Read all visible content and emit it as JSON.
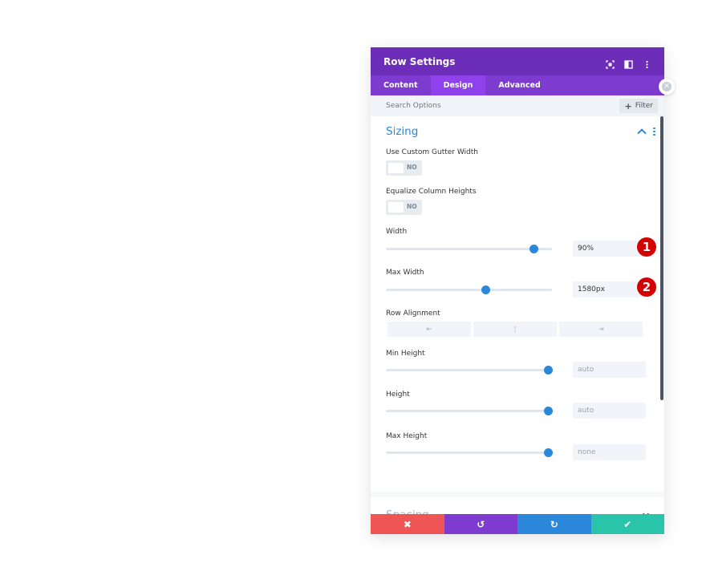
{
  "header": {
    "title": "Row Settings",
    "icons": [
      "screenshot-icon",
      "split-view-icon",
      "more-options-icon"
    ]
  },
  "tabs": [
    {
      "label": "Content",
      "active": false
    },
    {
      "label": "Design",
      "active": true
    },
    {
      "label": "Advanced",
      "active": false
    }
  ],
  "search": {
    "placeholder": "Search Options",
    "filter_label": "Filter",
    "filter_icon": "plus-icon"
  },
  "sizing": {
    "title": "Sizing",
    "custom_gutter": {
      "label": "Use Custom Gutter Width",
      "value": "NO"
    },
    "equalize_heights": {
      "label": "Equalize Column Heights",
      "value": "NO"
    },
    "width": {
      "label": "Width",
      "value": "90%",
      "level": 0.89
    },
    "max_width": {
      "label": "Max Width",
      "value": "1580px",
      "level": 0.6
    },
    "row_alignment": {
      "label": "Row Alignment",
      "options": [
        "left-align-icon",
        "center-align-icon",
        "right-align-icon"
      ]
    },
    "min_height": {
      "label": "Min Height",
      "value": "auto",
      "level": 0.98
    },
    "height": {
      "label": "Height",
      "value": "auto",
      "level": 0.98
    },
    "max_height": {
      "label": "Max Height",
      "value": "none",
      "level": 0.98
    }
  },
  "annotations": {
    "one": "1",
    "two": "2"
  },
  "spacing": {
    "title": "Spacing"
  },
  "footer": {
    "cancel": "✖",
    "undo": "↺",
    "redo": "↻",
    "save": "✔"
  },
  "colors": {
    "header": "#6c2eb9",
    "tabs": "#7e3bd0",
    "accent": "#2b87da",
    "cancel": "#ef5555",
    "undo": "#7e3bd0",
    "redo": "#2b87da",
    "save": "#29c4a9",
    "badge": "#d40000"
  }
}
